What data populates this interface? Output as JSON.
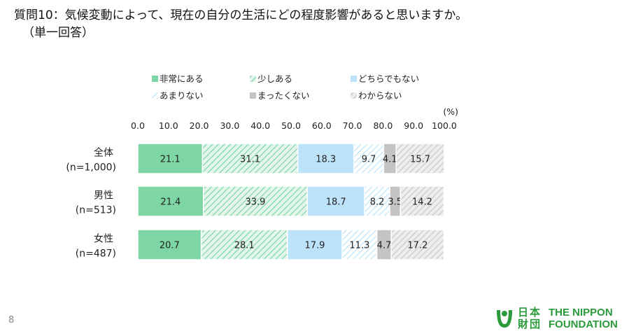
{
  "title": {
    "line1": "質問10：気候変動によって、現在の自分の生活にどの程度影響があると思いますか。",
    "line2": "（単一回答）"
  },
  "page_number": "8",
  "logo": {
    "jp_line1": "日本",
    "jp_line2": "財団",
    "en_line1": "THE NIPPON",
    "en_line2": "FOUNDATION"
  },
  "colors": {
    "series1": "#7dd6a4",
    "series2": "#7dd6a4",
    "series3": "#bde3fb",
    "series4": "#bde3fb",
    "series5": "#c4c4c4",
    "series6": "#c9c9c9"
  },
  "chart_data": {
    "type": "bar",
    "orientation": "horizontal",
    "stacked": true,
    "unit_label": "(%)",
    "xlim": [
      0,
      100
    ],
    "x_ticks": [
      "0.0",
      "10.0",
      "20.0",
      "30.0",
      "40.0",
      "50.0",
      "60.0",
      "70.0",
      "80.0",
      "90.0",
      "100.0"
    ],
    "tick_axis_position": "top",
    "legend_position": "top",
    "grid": false,
    "categories": [
      {
        "label": "全体",
        "n": "(n=1,000)"
      },
      {
        "label": "男性",
        "n": "(n=513)"
      },
      {
        "label": "女性",
        "n": "(n=487)"
      }
    ],
    "series": [
      {
        "name": "非常にある",
        "fill": "solid-green",
        "values": [
          21.1,
          21.4,
          20.7
        ],
        "labels": [
          "21.1",
          "21.4",
          "20.7"
        ]
      },
      {
        "name": "少しある",
        "fill": "hatch-green",
        "values": [
          31.1,
          33.9,
          28.1
        ],
        "labels": [
          "31.1",
          "33.9",
          "28.1"
        ]
      },
      {
        "name": "どちらでもない",
        "fill": "solid-blue",
        "values": [
          18.3,
          18.7,
          17.9
        ],
        "labels": [
          "18.3",
          "18.7",
          "17.9"
        ]
      },
      {
        "name": "あまりない",
        "fill": "hatch-blue",
        "values": [
          9.7,
          8.2,
          11.3
        ],
        "labels": [
          "9.7",
          "8.2",
          "11.3"
        ]
      },
      {
        "name": "まったくない",
        "fill": "solid-gray",
        "values": [
          4.1,
          3.5,
          4.7
        ],
        "labels": [
          "4.1",
          "3.5",
          "4.7"
        ]
      },
      {
        "name": "わからない",
        "fill": "hatch-gray",
        "values": [
          15.7,
          14.2,
          17.2
        ],
        "labels": [
          "15.7",
          "14.2",
          "17.2"
        ]
      }
    ]
  }
}
